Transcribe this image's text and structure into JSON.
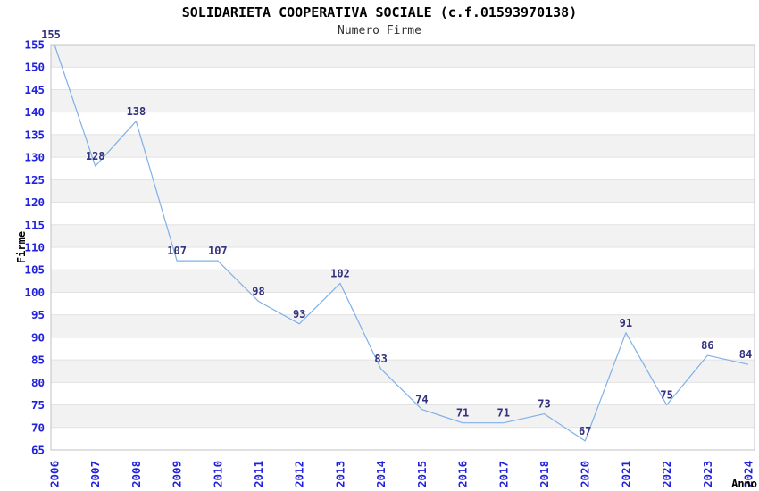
{
  "chart_data": {
    "type": "line",
    "title": "SOLIDARIETA COOPERATIVA SOCIALE (c.f.01593970138)",
    "subtitle": "Numero Firme",
    "xlabel": "Anno",
    "ylabel": "Firme",
    "categories": [
      "2006",
      "2007",
      "2008",
      "2009",
      "2010",
      "2011",
      "2012",
      "2013",
      "2014",
      "2015",
      "2016",
      "2017",
      "2018",
      "2020",
      "2021",
      "2022",
      "2023",
      "2024"
    ],
    "values": [
      155,
      128,
      138,
      107,
      107,
      98,
      93,
      102,
      83,
      74,
      71,
      71,
      73,
      67,
      91,
      75,
      86,
      84
    ],
    "ylim": [
      65,
      155
    ],
    "ytick_step": 5,
    "grid": true,
    "legend_position": "none",
    "band_alternation": true,
    "point_labels_visible": true,
    "colors": {
      "line": "#7fb0e8",
      "tick_label": "#2222dd",
      "point_label": "#32327e",
      "band": "#f2f2f2",
      "gridline": "#e2e2e2",
      "border": "#c2c2c2",
      "title": "#000000",
      "subtitle": "#333333",
      "axis_title": "#000000"
    }
  }
}
